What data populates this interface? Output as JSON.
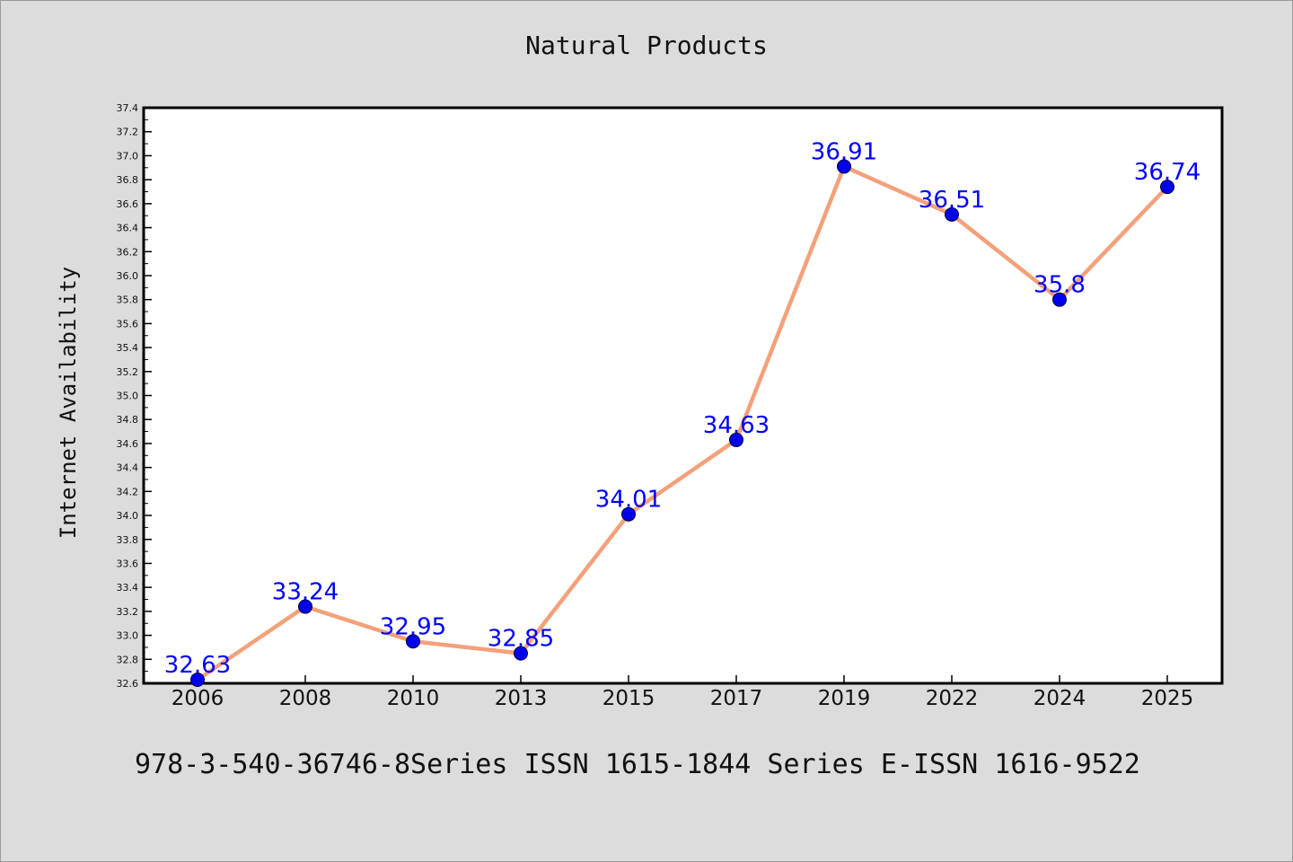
{
  "title": "Natural Products",
  "footer": "978-3-540-36746-8Series ISSN 1615-1844 Series E-ISSN 1616-9522",
  "chart_data": {
    "type": "line",
    "title": "Natural Products",
    "xlabel": "",
    "ylabel": "Internet Availability",
    "categories": [
      "2006",
      "2008",
      "2010",
      "2013",
      "2015",
      "2017",
      "2019",
      "2022",
      "2024",
      "2025"
    ],
    "series": [
      {
        "values": [
          32.63,
          33.24,
          32.95,
          32.85,
          34.01,
          34.63,
          36.91,
          36.51,
          35.8,
          36.74
        ],
        "labels": [
          "32.63",
          "33.24",
          "32.95",
          "32.85",
          "34.01",
          "34.63",
          "36.91",
          "36.51",
          "35.8",
          "36.74"
        ],
        "line_color": "#f4a07a",
        "marker_color": "#0000ee"
      }
    ],
    "ylim": [
      32.6,
      37.4
    ],
    "yticks": [
      "32.6",
      "32.8",
      "33.0",
      "33.2",
      "33.4",
      "33.6",
      "33.8",
      "34.0",
      "34.2",
      "34.4",
      "34.6",
      "34.8",
      "35.0",
      "35.2",
      "35.4",
      "35.6",
      "35.8",
      "36.0",
      "36.2",
      "36.4",
      "36.6",
      "36.8",
      "37.0",
      "37.2",
      "37.4"
    ],
    "grid": false,
    "legend": "none"
  }
}
